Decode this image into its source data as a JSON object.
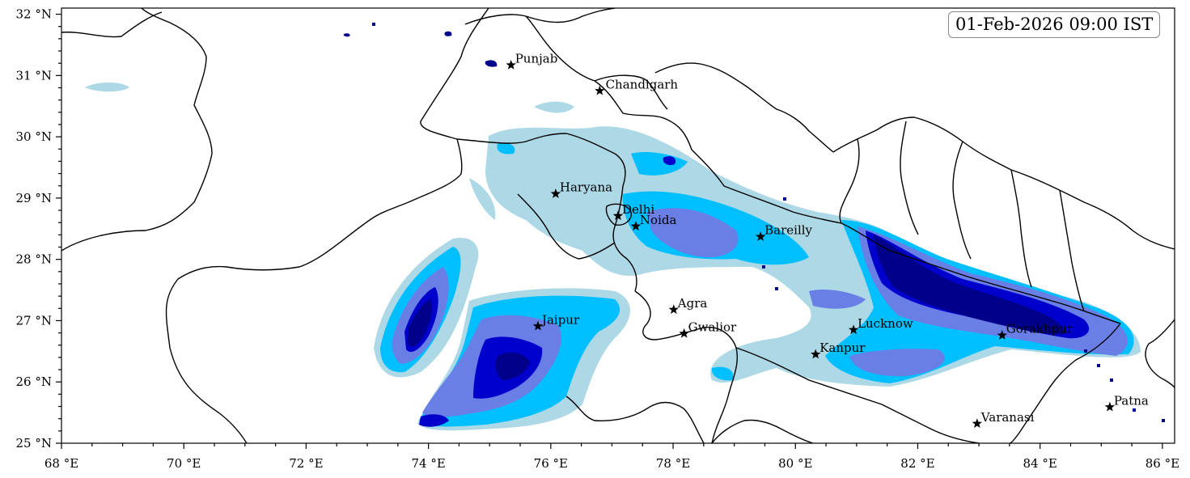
{
  "timestamp": "01-Feb-2026 09:00 IST",
  "extent": {
    "lon": [
      68,
      86.2
    ],
    "lat": [
      25,
      32.1
    ]
  },
  "lon_ticks": [
    {
      "value": 68,
      "label": "68 °E"
    },
    {
      "value": 70,
      "label": "70 °E"
    },
    {
      "value": 72,
      "label": "72 °E"
    },
    {
      "value": 74,
      "label": "74 °E"
    },
    {
      "value": 76,
      "label": "76 °E"
    },
    {
      "value": 78,
      "label": "78 °E"
    },
    {
      "value": 80,
      "label": "80 °E"
    },
    {
      "value": 82,
      "label": "82 °E"
    },
    {
      "value": 84,
      "label": "84 °E"
    },
    {
      "value": 86,
      "label": "86 °E"
    }
  ],
  "lat_ticks": [
    {
      "value": 25,
      "label": "25 °N"
    },
    {
      "value": 26,
      "label": "26 °N"
    },
    {
      "value": 27,
      "label": "27 °N"
    },
    {
      "value": 28,
      "label": "28 °N"
    },
    {
      "value": 29,
      "label": "29 °N"
    },
    {
      "value": 30,
      "label": "30 °N"
    },
    {
      "value": 31,
      "label": "31 °N"
    },
    {
      "value": 32,
      "label": "32 °N"
    }
  ],
  "colors": {
    "level1": "#add8e6",
    "level2": "#00bfff",
    "level3": "#6a7fe6",
    "level4": "#0000cd",
    "level5": "#00008b"
  },
  "cities": [
    {
      "name": "Punjab",
      "lon": 75.35,
      "lat": 31.17
    },
    {
      "name": "Chandigarh",
      "lon": 76.8,
      "lon_label": 76.83,
      "lat": 30.75
    },
    {
      "name": "Haryana",
      "lon": 76.08,
      "lat": 29.07
    },
    {
      "name": "Delhi",
      "lon": 77.1,
      "lat": 28.71
    },
    {
      "name": "Noida",
      "lon": 77.39,
      "lat": 28.54
    },
    {
      "name": "Bareilly",
      "lon": 79.43,
      "lat": 28.37
    },
    {
      "name": "Agra",
      "lon": 78.01,
      "lat": 27.18
    },
    {
      "name": "Jaipur",
      "lon": 75.79,
      "lat": 26.91
    },
    {
      "name": "Gwalior",
      "lon": 78.18,
      "lat": 26.79
    },
    {
      "name": "Lucknow",
      "lon": 80.95,
      "lat": 26.85
    },
    {
      "name": "Kanpur",
      "lon": 80.33,
      "lat": 26.45
    },
    {
      "name": "Gorakhpur",
      "lon": 83.38,
      "lat": 26.76
    },
    {
      "name": "Patna",
      "lon": 85.14,
      "lat": 25.59
    },
    {
      "name": "Varanasi",
      "lon": 82.97,
      "lat": 25.32
    }
  ]
}
